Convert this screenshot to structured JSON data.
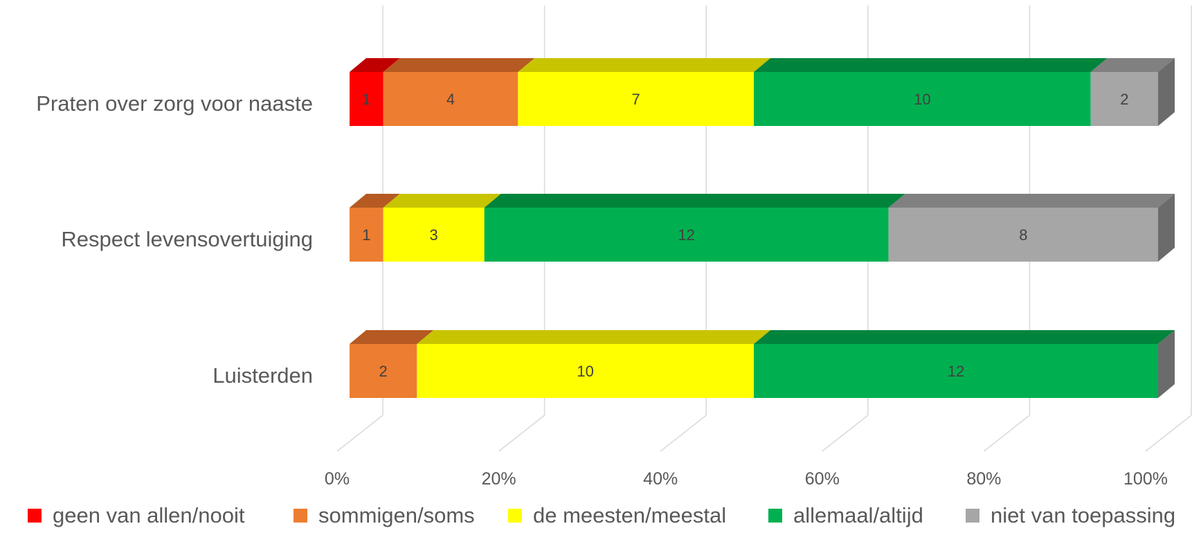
{
  "chart_data": {
    "type": "bar",
    "orientation": "horizontal",
    "stacked": "percent",
    "three_d": true,
    "categories": [
      "Praten over zorg voor naaste",
      "Respect levensovertuiging",
      "Luisterden"
    ],
    "series": [
      {
        "name": "geen van allen/nooit",
        "color": "#ff0000",
        "top_color": "#c00000",
        "values": [
          1,
          0,
          0
        ]
      },
      {
        "name": "sommigen/soms",
        "color": "#ed7d31",
        "top_color": "#b55a22",
        "values": [
          4,
          1,
          2
        ]
      },
      {
        "name": "de meesten/meestal",
        "color": "#ffff00",
        "top_color": "#c9c400",
        "values": [
          7,
          3,
          10
        ]
      },
      {
        "name": "allemaal/altijd",
        "color": "#00b050",
        "top_color": "#00843c",
        "values": [
          10,
          12,
          12
        ]
      },
      {
        "name": "niet van toepassing",
        "color": "#a6a6a6",
        "top_color": "#808080",
        "values": [
          2,
          8,
          0
        ]
      }
    ],
    "x_ticks": [
      "0%",
      "20%",
      "40%",
      "60%",
      "80%",
      "100%"
    ],
    "xlim": [
      0,
      100
    ],
    "grid": true,
    "legend_position": "bottom",
    "title": "",
    "xlabel": "",
    "ylabel": ""
  }
}
